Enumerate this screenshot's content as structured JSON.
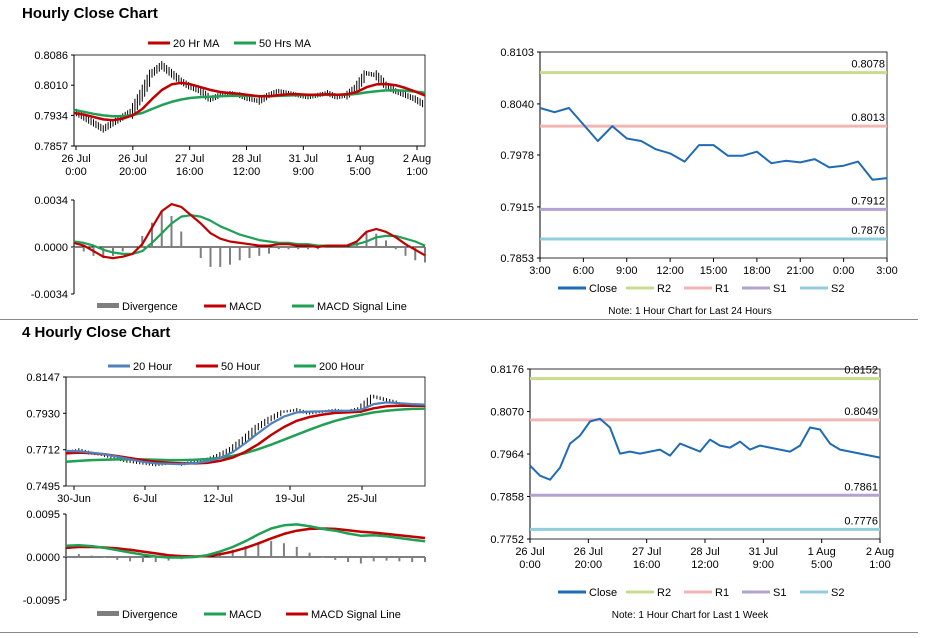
{
  "sections": {
    "hourly_title": "Hourly Close Chart",
    "four_hourly_title": "4 Hourly Close Chart"
  },
  "chart_data": [
    {
      "id": "h1_price",
      "type": "line",
      "ylim": [
        0.7857,
        0.8086
      ],
      "y_ticks": [
        "0.8086",
        "0.8010",
        "0.7934",
        "0.7857"
      ],
      "x_ticks": [
        "26 Jul|0:00",
        "26 Jul|20:00",
        "27 Jul|16:00",
        "28 Jul|12:00",
        "31 Jul|9:00",
        "1 Aug|5:00",
        "2 Aug|1:00"
      ],
      "legend": [
        "20 Hr MA",
        "50 Hrs MA"
      ],
      "close": [
        0.7945,
        0.793,
        0.7915,
        0.79,
        0.7915,
        0.793,
        0.7945,
        0.799,
        0.804,
        0.806,
        0.804,
        0.802,
        0.8005,
        0.7995,
        0.7975,
        0.7985,
        0.799,
        0.7985,
        0.7975,
        0.797,
        0.7985,
        0.7995,
        0.799,
        0.7985,
        0.798,
        0.7985,
        0.799,
        0.798,
        0.7985,
        0.8005,
        0.804,
        0.8035,
        0.801,
        0.7995,
        0.7985,
        0.7975,
        0.796
      ],
      "ma20": [
        0.794,
        0.7936,
        0.793,
        0.7924,
        0.7922,
        0.7926,
        0.7934,
        0.795,
        0.7975,
        0.7998,
        0.8012,
        0.8016,
        0.8012,
        0.8005,
        0.7998,
        0.7993,
        0.799,
        0.7988,
        0.7985,
        0.7982,
        0.7982,
        0.7985,
        0.7987,
        0.7987,
        0.7986,
        0.7986,
        0.7987,
        0.7986,
        0.7987,
        0.7993,
        0.8005,
        0.8012,
        0.8013,
        0.801,
        0.8003,
        0.7994,
        0.7984
      ],
      "ma50": [
        0.7948,
        0.7943,
        0.7938,
        0.7934,
        0.7932,
        0.7932,
        0.7935,
        0.794,
        0.795,
        0.796,
        0.7968,
        0.7974,
        0.7978,
        0.798,
        0.7981,
        0.7982,
        0.7983,
        0.7983,
        0.7983,
        0.7982,
        0.7982,
        0.7983,
        0.7984,
        0.7985,
        0.7985,
        0.7985,
        0.7986,
        0.7986,
        0.7986,
        0.7988,
        0.7992,
        0.7995,
        0.7997,
        0.7997,
        0.7996,
        0.7994,
        0.7991
      ]
    },
    {
      "id": "h1_macd",
      "type": "line",
      "ylim": [
        -0.0034,
        0.0034
      ],
      "y_ticks": [
        "0.0034",
        "0.0000",
        "-0.0034"
      ],
      "legend": [
        "Divergence",
        "MACD",
        "MACD Signal Line"
      ],
      "macd": [
        0.0003,
        0.0001,
        -0.0003,
        -0.0007,
        -0.0008,
        -0.0007,
        -0.0005,
        0.0002,
        0.0014,
        0.0026,
        0.0031,
        0.0029,
        0.0023,
        0.0017,
        0.001,
        0.0006,
        0.0004,
        0.0003,
        0.0002,
        0.0001,
        0.0001,
        0.0002,
        0.0002,
        0.0001,
        0.0001,
        0.0,
        0.0001,
        0.0001,
        0.0001,
        0.0004,
        0.0011,
        0.0013,
        0.0011,
        0.0007,
        0.0002,
        -0.0002,
        -0.0006
      ],
      "signal": [
        0.0004,
        0.0003,
        0.0001,
        -0.0002,
        -0.0004,
        -0.0005,
        -0.0005,
        -0.0003,
        0.0003,
        0.001,
        0.0017,
        0.0022,
        0.0023,
        0.0022,
        0.0019,
        0.0015,
        0.0012,
        0.0009,
        0.0007,
        0.0005,
        0.0004,
        0.0003,
        0.0003,
        0.0002,
        0.0002,
        0.0001,
        0.0001,
        0.0001,
        0.0001,
        0.0002,
        0.0004,
        0.0007,
        0.0008,
        0.0008,
        0.0006,
        0.0004,
        0.0001
      ]
    },
    {
      "id": "h1_close_24h",
      "type": "line",
      "ylim": [
        0.7853,
        0.8103
      ],
      "y_ticks": [
        "0.8103",
        "0.8040",
        "0.7978",
        "0.7915",
        "0.7853"
      ],
      "x_ticks": [
        "3:00",
        "6:00",
        "9:00",
        "12:00",
        "15:00",
        "18:00",
        "21:00",
        "0:00",
        "3:00"
      ],
      "close": [
        0.8035,
        0.803,
        0.8035,
        0.8015,
        0.7995,
        0.8013,
        0.7998,
        0.7995,
        0.7985,
        0.798,
        0.797,
        0.799,
        0.799,
        0.7977,
        0.7977,
        0.7982,
        0.7968,
        0.7971,
        0.7969,
        0.7973,
        0.7963,
        0.7965,
        0.797,
        0.7948,
        0.795
      ],
      "levels": [
        {
          "name": "R2",
          "value": 0.8078,
          "label": "0.8078",
          "color": "#c6dc8e"
        },
        {
          "name": "R1",
          "value": 0.8013,
          "label": "0.8013",
          "color": "#f0b6b4"
        },
        {
          "name": "S1",
          "value": 0.7912,
          "label": "0.7912",
          "color": "#b3a2cf"
        },
        {
          "name": "S2",
          "value": 0.7876,
          "label": "0.7876",
          "color": "#92cddc"
        }
      ],
      "legend": [
        "Close",
        "R2",
        "R1",
        "S1",
        "S2"
      ],
      "note": "Note: 1 Hour Chart for Last 24 Hours"
    },
    {
      "id": "h4_price",
      "type": "line",
      "ylim": [
        0.7495,
        0.8147
      ],
      "y_ticks": [
        "0.8147",
        "0.7930",
        "0.7712",
        "0.7495"
      ],
      "x_ticks": [
        "30-Jun",
        "6-Jul",
        "12-Jul",
        "19-Jul",
        "25-Jul"
      ],
      "legend": [
        "20 Hour",
        "50 Hour",
        "200 Hour"
      ],
      "close": [
        0.77,
        0.771,
        0.769,
        0.768,
        0.766,
        0.764,
        0.763,
        0.762,
        0.763,
        0.7625,
        0.764,
        0.765,
        0.768,
        0.772,
        0.778,
        0.785,
        0.79,
        0.794,
        0.795,
        0.793,
        0.794,
        0.795,
        0.794,
        0.796,
        0.803,
        0.801,
        0.799,
        0.7985,
        0.798
      ],
      "ma20": [
        0.7705,
        0.7702,
        0.7695,
        0.7685,
        0.767,
        0.7655,
        0.764,
        0.763,
        0.7628,
        0.7626,
        0.7632,
        0.7642,
        0.7662,
        0.7698,
        0.7752,
        0.7812,
        0.7868,
        0.791,
        0.7935,
        0.794,
        0.7942,
        0.7945,
        0.7944,
        0.795,
        0.7985,
        0.7995,
        0.799,
        0.7985,
        0.7982
      ],
      "ma50": [
        0.769,
        0.7695,
        0.7692,
        0.7685,
        0.7674,
        0.7662,
        0.765,
        0.764,
        0.7634,
        0.763,
        0.763,
        0.7633,
        0.7645,
        0.7665,
        0.77,
        0.7745,
        0.78,
        0.7848,
        0.7885,
        0.7908,
        0.7922,
        0.7932,
        0.7935,
        0.794,
        0.796,
        0.7972,
        0.7975,
        0.7975,
        0.7975
      ],
      "ma200": [
        0.764,
        0.7645,
        0.765,
        0.7652,
        0.7654,
        0.7654,
        0.7654,
        0.7652,
        0.765,
        0.765,
        0.7652,
        0.7656,
        0.7663,
        0.7675,
        0.7692,
        0.7715,
        0.7742,
        0.7772,
        0.7802,
        0.7832,
        0.786,
        0.7885,
        0.7905,
        0.792,
        0.7935,
        0.7945,
        0.7952,
        0.7956,
        0.7958
      ]
    },
    {
      "id": "h4_macd",
      "type": "line",
      "ylim": [
        -0.0095,
        0.0095
      ],
      "y_ticks": [
        "0.0095",
        "0.0000",
        "-0.0095"
      ],
      "legend": [
        "Divergence",
        "MACD",
        "MACD Signal Line"
      ],
      "macd": [
        0.0025,
        0.0026,
        0.0024,
        0.002,
        0.0015,
        0.001,
        0.0005,
        0.0001,
        -0.0001,
        -0.0001,
        0.0,
        0.0004,
        0.0012,
        0.0022,
        0.0035,
        0.005,
        0.0063,
        0.007,
        0.0072,
        0.0068,
        0.0062,
        0.0058,
        0.0052,
        0.0047,
        0.0048,
        0.0046,
        0.0042,
        0.0038,
        0.0035
      ],
      "signal": [
        0.002,
        0.0022,
        0.0022,
        0.0021,
        0.0019,
        0.0016,
        0.0012,
        0.0008,
        0.0004,
        0.0002,
        0.0001,
        0.0002,
        0.0006,
        0.0012,
        0.002,
        0.003,
        0.0041,
        0.0051,
        0.0058,
        0.0062,
        0.0063,
        0.0062,
        0.0059,
        0.0056,
        0.0054,
        0.0051,
        0.0048,
        0.0045,
        0.0042
      ]
    },
    {
      "id": "h1_close_week",
      "type": "line",
      "ylim": [
        0.7752,
        0.8176
      ],
      "y_ticks": [
        "0.8176",
        "0.8070",
        "0.7964",
        "0.7858",
        "0.7752"
      ],
      "x_ticks": [
        "26 Jul|0:00",
        "26 Jul|20:00",
        "27 Jul|16:00",
        "28 Jul|12:00",
        "31 Jul|9:00",
        "1 Aug|5:00",
        "2 Aug|1:00"
      ],
      "close": [
        0.7935,
        0.791,
        0.79,
        0.793,
        0.799,
        0.801,
        0.8045,
        0.8052,
        0.803,
        0.7965,
        0.797,
        0.7965,
        0.797,
        0.7975,
        0.796,
        0.799,
        0.798,
        0.797,
        0.8,
        0.7985,
        0.798,
        0.7995,
        0.7975,
        0.7985,
        0.798,
        0.7975,
        0.797,
        0.7985,
        0.803,
        0.8025,
        0.799,
        0.7975,
        0.797,
        0.7965,
        0.796,
        0.7955
      ],
      "levels": [
        {
          "name": "R2",
          "value": 0.8152,
          "label": "0.8152",
          "color": "#c6dc8e"
        },
        {
          "name": "R1",
          "value": 0.8049,
          "label": "0.8049",
          "color": "#f0b6b4"
        },
        {
          "name": "S1",
          "value": 0.7861,
          "label": "0.7861",
          "color": "#b3a2cf"
        },
        {
          "name": "S2",
          "value": 0.7776,
          "label": "0.7776",
          "color": "#92cddc"
        }
      ],
      "legend": [
        "Close",
        "R2",
        "R1",
        "S1",
        "S2"
      ],
      "note": "Note: 1 Hour Chart for Last 1 Week"
    }
  ],
  "colors": {
    "ma_red": "#c00000",
    "ma_green": "#1fa055",
    "ma_blue": "#4f81bd",
    "close_blue": "#1f6bb5",
    "divergence": "#7f7f7f",
    "candle": "#000000"
  }
}
